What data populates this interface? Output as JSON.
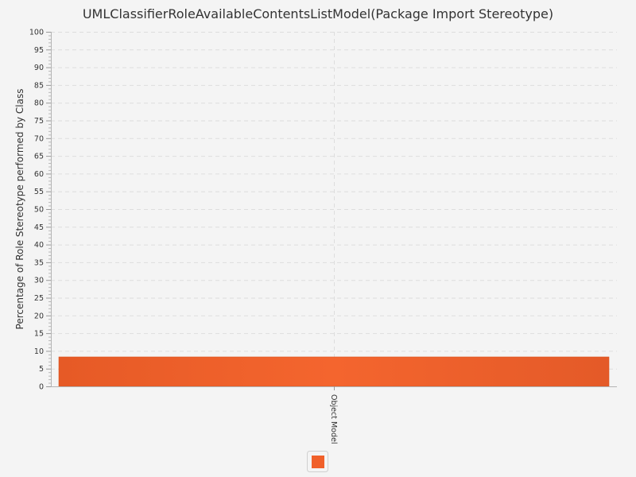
{
  "chart_data": {
    "type": "bar",
    "title": "UMLClassifierRoleAvailableContentsListModel(Package Import Stereotype)",
    "xlabel": "",
    "ylabel": "Percentage of Role Stereotype performed by Class",
    "categories": [
      "Object Model"
    ],
    "series": [
      {
        "values": [
          8.3
        ],
        "color": "#f0602a"
      }
    ],
    "ylim": [
      0,
      100
    ],
    "ytick_step": 5,
    "ytick_labels": [
      "0",
      "5",
      "10",
      "15",
      "20",
      "25",
      "30",
      "35",
      "40",
      "45",
      "50",
      "55",
      "60",
      "65",
      "70",
      "75",
      "80",
      "85",
      "90",
      "95",
      "100"
    ],
    "grid": true,
    "legend": {
      "position": "bottom",
      "entries": [
        ""
      ]
    }
  }
}
